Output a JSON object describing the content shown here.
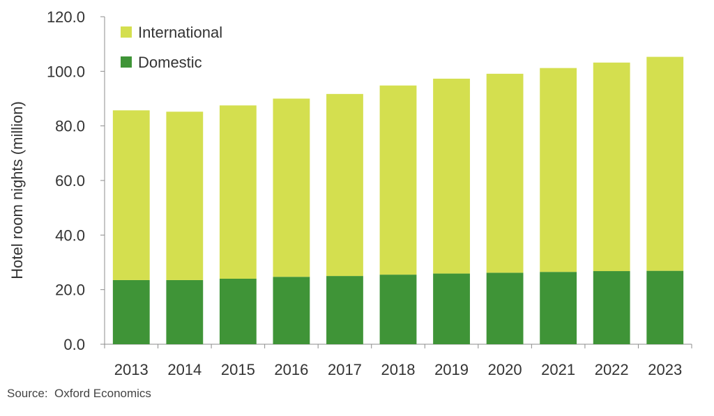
{
  "chart_data": {
    "type": "bar",
    "stacked": true,
    "title": "",
    "xlabel": "",
    "ylabel": "Hotel room nights (million)",
    "ylim": [
      0,
      120
    ],
    "yticks": [
      "0.0",
      "20.0",
      "40.0",
      "60.0",
      "80.0",
      "100.0",
      "120.0"
    ],
    "categories": [
      "2013",
      "2014",
      "2015",
      "2016",
      "2017",
      "2018",
      "2019",
      "2020",
      "2021",
      "2022",
      "2023"
    ],
    "series": [
      {
        "name": "Domestic",
        "color": "#3f9437",
        "values": [
          23.5,
          23.5,
          24.0,
          24.7,
          25.0,
          25.5,
          25.9,
          26.2,
          26.5,
          26.8,
          26.9
        ]
      },
      {
        "name": "International",
        "color": "#d4df4f",
        "values": [
          62.2,
          61.7,
          63.5,
          65.3,
          66.7,
          69.3,
          71.4,
          72.9,
          74.7,
          76.4,
          78.4
        ]
      }
    ],
    "totals": [
      85.7,
      85.2,
      87.5,
      90.0,
      91.7,
      94.8,
      97.3,
      99.1,
      101.2,
      103.2,
      105.3
    ],
    "legend": {
      "placement": "top-left",
      "order": [
        "International",
        "Domestic"
      ]
    },
    "grid": false
  },
  "source": "Source:  Oxford Economics"
}
